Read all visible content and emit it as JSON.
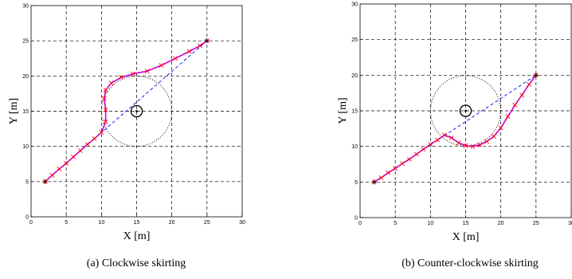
{
  "chart_data": [
    {
      "type": "line",
      "panel": "a",
      "caption": "(a)  Clockwise skirting",
      "xlabel": "X [m]",
      "ylabel": "Y [m]",
      "xlim": [
        0,
        30
      ],
      "ylim": [
        0,
        30
      ],
      "xticks": [
        0,
        5,
        10,
        15,
        20,
        25,
        30
      ],
      "yticks": [
        0,
        5,
        10,
        15,
        20,
        25,
        30
      ],
      "grid": true,
      "start": [
        2,
        5
      ],
      "goal": [
        25,
        25
      ],
      "obstacle": {
        "center": [
          15,
          15
        ],
        "radius": 0.8,
        "influence_radius": 5
      },
      "series": [
        {
          "role": "straight-line",
          "color": "#0000ff",
          "style": "dashed",
          "x": [
            2,
            25
          ],
          "y": [
            5,
            25
          ]
        },
        {
          "role": "trajectory",
          "color": "#cc00cc",
          "marker": "x",
          "marker_color": "#ff0000",
          "x": [
            2,
            3,
            4,
            5,
            6,
            7,
            8,
            9,
            10,
            10.6,
            10.6,
            10.4,
            10.6,
            11.4,
            12.8,
            14.5,
            16.5,
            18.5,
            20.5,
            22.5,
            24,
            25
          ],
          "y": [
            5,
            5.9,
            6.8,
            7.6,
            8.5,
            9.4,
            10.3,
            11.1,
            12,
            13.5,
            15.2,
            16.8,
            18,
            19,
            19.8,
            20.3,
            20.7,
            21.5,
            22.5,
            23.5,
            24.3,
            25
          ]
        }
      ]
    },
    {
      "type": "line",
      "panel": "b",
      "caption": "(b)  Counter-clockwise skirting",
      "xlabel": "X [m]",
      "ylabel": "Y [m]",
      "xlim": [
        0,
        30
      ],
      "ylim": [
        0,
        30
      ],
      "xticks": [
        0,
        5,
        10,
        15,
        20,
        25,
        30
      ],
      "yticks": [
        0,
        5,
        10,
        15,
        20,
        25,
        30
      ],
      "grid": true,
      "start": [
        2,
        5
      ],
      "goal": [
        25,
        20
      ],
      "obstacle": {
        "center": [
          15,
          15
        ],
        "radius": 0.8,
        "influence_radius": 5
      },
      "series": [
        {
          "role": "straight-line",
          "color": "#0000ff",
          "style": "dashed",
          "x": [
            2,
            25
          ],
          "y": [
            5,
            20
          ]
        },
        {
          "role": "trajectory",
          "color": "#cc00cc",
          "marker": "x",
          "marker_color": "#ff0000",
          "x": [
            2,
            3,
            4,
            5,
            6,
            7,
            8,
            9,
            10,
            11,
            12,
            13,
            14,
            15,
            16,
            17,
            18,
            19,
            20,
            21,
            22,
            23,
            24,
            25
          ],
          "y": [
            5,
            5.6,
            6.3,
            6.9,
            7.6,
            8.2,
            8.9,
            9.6,
            10.3,
            10.9,
            11.6,
            11.2,
            10.5,
            10.1,
            10,
            10.2,
            10.7,
            11.4,
            12.6,
            14.2,
            15.8,
            17.2,
            18.7,
            20
          ]
        }
      ]
    }
  ]
}
